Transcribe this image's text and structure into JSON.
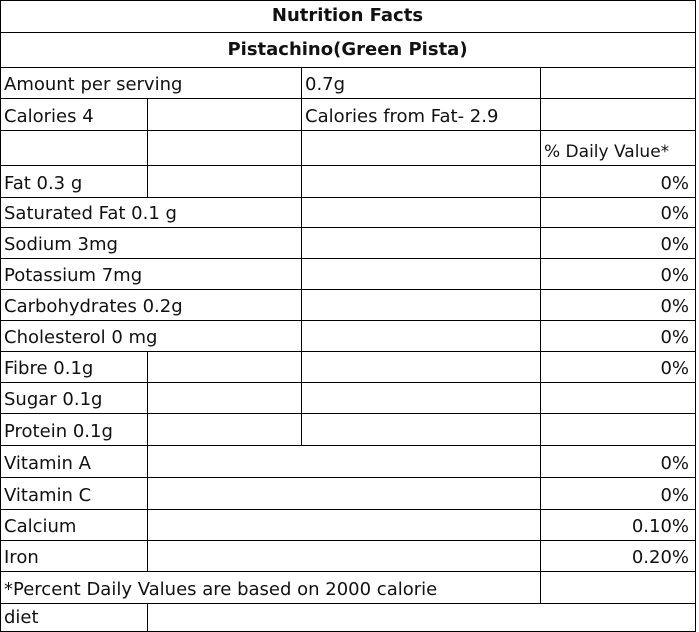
{
  "title": "Nutrition Facts",
  "subtitle": "Pistachino(Green Pista)",
  "serving": {
    "label": "Amount per serving",
    "value": "0.7g"
  },
  "calories": {
    "label": "Calories  4",
    "from_fat": "Calories from Fat- 2.9"
  },
  "daily_value_header": "% Daily Value*",
  "nutrients": [
    {
      "name": "Fat 0.3 g",
      "dv": "0%"
    },
    {
      "name": "Saturated Fat 0.1 g",
      "dv": "0%"
    },
    {
      "name": "Sodium 3mg",
      "dv": "0%"
    },
    {
      "name": "Potassium 7mg",
      "dv": "0%"
    },
    {
      "name": "Carbohydrates 0.2g",
      "dv": "0%"
    },
    {
      "name": "Cholesterol 0 mg",
      "dv": "0%"
    },
    {
      "name": "Fibre 0.1g",
      "dv": "0%"
    },
    {
      "name": "Sugar 0.1g",
      "dv": ""
    },
    {
      "name": "Protein 0.1g",
      "dv": ""
    },
    {
      "name": "Vitamin A",
      "dv": "0%"
    },
    {
      "name": "Vitamin C",
      "dv": "0%"
    },
    {
      "name": "Calcium",
      "dv": "0.10%"
    },
    {
      "name": "Iron",
      "dv": "0.20%"
    }
  ],
  "footnote": {
    "line1": "*Percent Daily Values are based on 2000 calorie",
    "line2": "diet"
  }
}
